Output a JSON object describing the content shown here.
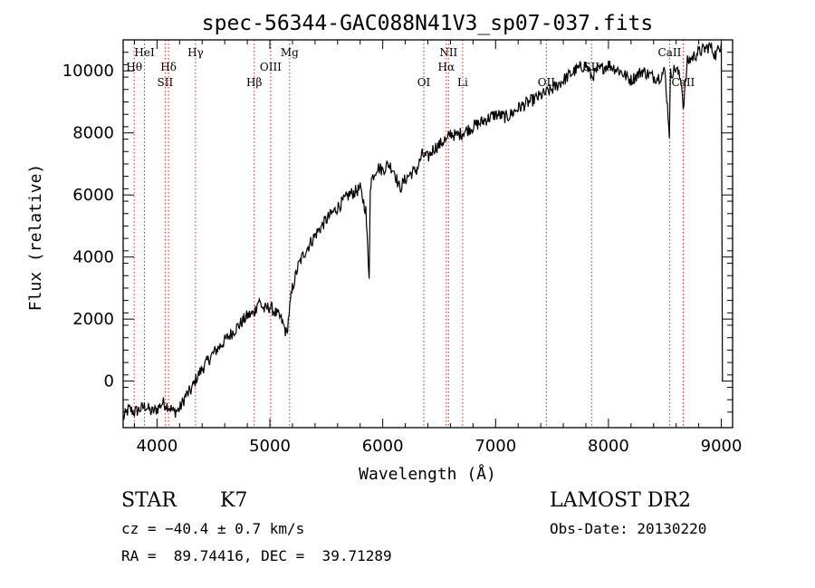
{
  "chart_data": {
    "type": "line",
    "title": "spec-56344-GAC088N41V3_sp07-037.fits",
    "xlabel": "Wavelength (Å)",
    "ylabel": "Flux (relative)",
    "xlim": [
      3700,
      9100
    ],
    "ylim": [
      -1500,
      11000
    ],
    "x_ticks": [
      4000,
      5000,
      6000,
      7000,
      8000,
      9000
    ],
    "y_ticks": [
      0,
      2000,
      4000,
      6000,
      8000,
      10000
    ],
    "line_color": "#000000",
    "marker_color": "#cc2222",
    "spectrum": {
      "x": [
        3700,
        3750,
        3800,
        3850,
        3900,
        3950,
        4000,
        4050,
        4100,
        4150,
        4200,
        4250,
        4300,
        4350,
        4400,
        4500,
        4600,
        4700,
        4800,
        4860,
        4900,
        4950,
        5000,
        5050,
        5100,
        5150,
        5170,
        5200,
        5250,
        5300,
        5350,
        5400,
        5500,
        5600,
        5700,
        5800,
        5850,
        5880,
        5890,
        5900,
        5950,
        6000,
        6050,
        6100,
        6150,
        6200,
        6250,
        6300,
        6350,
        6400,
        6450,
        6500,
        6550,
        6563,
        6600,
        6650,
        6700,
        6800,
        6900,
        7000,
        7100,
        7200,
        7300,
        7400,
        7450,
        7500,
        7600,
        7700,
        7800,
        7850,
        7900,
        8000,
        8100,
        8200,
        8300,
        8400,
        8450,
        8500,
        8540,
        8550,
        8600,
        8650,
        8662,
        8700,
        8800,
        8900,
        8950,
        9000,
        9010
      ],
      "y": [
        -1200,
        -900,
        -1000,
        -900,
        -800,
        -1000,
        -900,
        -700,
        -800,
        -1000,
        -900,
        -500,
        -300,
        100,
        400,
        900,
        1300,
        1700,
        2100,
        2200,
        2600,
        2300,
        2400,
        2200,
        2000,
        1500,
        2200,
        3000,
        3700,
        4100,
        4400,
        4700,
        5200,
        5600,
        6000,
        6200,
        5500,
        3300,
        6300,
        6500,
        6900,
        6800,
        7000,
        6800,
        6200,
        6500,
        6700,
        6800,
        7300,
        7200,
        7500,
        7600,
        7800,
        7700,
        8000,
        7900,
        8000,
        8200,
        8400,
        8600,
        8500,
        8800,
        9000,
        9200,
        9300,
        9400,
        9700,
        10000,
        10200,
        9800,
        10000,
        10200,
        10000,
        9700,
        10000,
        9800,
        9800,
        10000,
        8000,
        9900,
        10100,
        9600,
        8800,
        10300,
        10600,
        10800,
        10500,
        10900,
        0
      ]
    },
    "lines": [
      {
        "name": "Hθ",
        "x": 3798,
        "row": 1
      },
      {
        "name": "HeI",
        "x": 3889,
        "row": 0
      },
      {
        "name": "Hδ",
        "x": 4102,
        "row": 1
      },
      {
        "name": "SII",
        "x": 4072,
        "row": 2
      },
      {
        "name": "Hγ",
        "x": 4341,
        "row": 0
      },
      {
        "name": "Hβ",
        "x": 4861,
        "row": 2
      },
      {
        "name": "OIII",
        "x": 5007,
        "row": 1
      },
      {
        "name": "Mg",
        "x": 5175,
        "row": 0
      },
      {
        "name": "OI",
        "x": 6364,
        "row": 2
      },
      {
        "name": "NII",
        "x": 6583,
        "row": 0
      },
      {
        "name": "Hα",
        "x": 6563,
        "row": 1
      },
      {
        "name": "Li",
        "x": 6708,
        "row": 2
      },
      {
        "name": "OII",
        "x": 7450,
        "row": 2
      },
      {
        "name": "SII",
        "x": 7850,
        "row": 1
      },
      {
        "name": "CaII",
        "x": 8542,
        "row": 0
      },
      {
        "name": "CaII",
        "x": 8662,
        "row": 2
      }
    ]
  },
  "info": {
    "class": "STAR",
    "subclass": "K7",
    "survey": "LAMOST DR2",
    "cz": "cz = −40.4 ± 0.7 km/s",
    "obs_date": "Obs-Date: 20130220",
    "coords": "RA =  89.74416, DEC =  39.71289"
  }
}
